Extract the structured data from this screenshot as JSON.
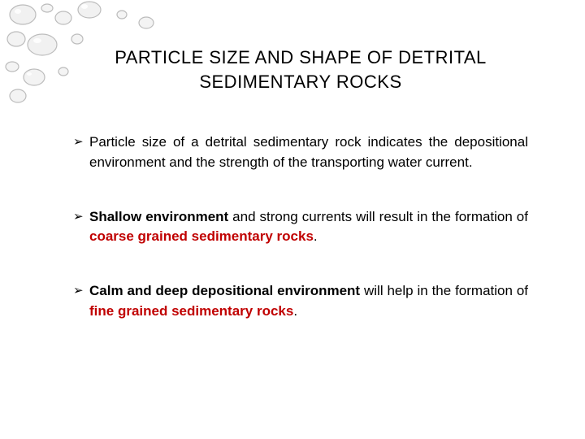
{
  "title": "PARTICLE SIZE AND SHAPE OF DETRITAL SEDIMENTARY ROCKS",
  "bullets": [
    {
      "segments": [
        {
          "text": "Particle size of a detrital sedimentary rock indicates the depositional environment and the strength of the transporting water current.",
          "style": ""
        }
      ]
    },
    {
      "segments": [
        {
          "text": "Shallow environment",
          "style": "bold"
        },
        {
          "text": " and strong currents will result in the formation of ",
          "style": ""
        },
        {
          "text": "coarse grained sedimentary rocks",
          "style": "red"
        },
        {
          "text": ".",
          "style": ""
        }
      ]
    },
    {
      "segments": [
        {
          "text": "Calm and deep depositional environment",
          "style": "bold"
        },
        {
          "text": " will help in the formation of ",
          "style": ""
        },
        {
          "text": "fine grained sedimentary rocks",
          "style": "red"
        },
        {
          "text": ".",
          "style": ""
        }
      ]
    }
  ],
  "colors": {
    "text": "#000000",
    "accent": "#c00000",
    "background": "#ffffff",
    "bubble_stroke": "#bcbcbc"
  }
}
